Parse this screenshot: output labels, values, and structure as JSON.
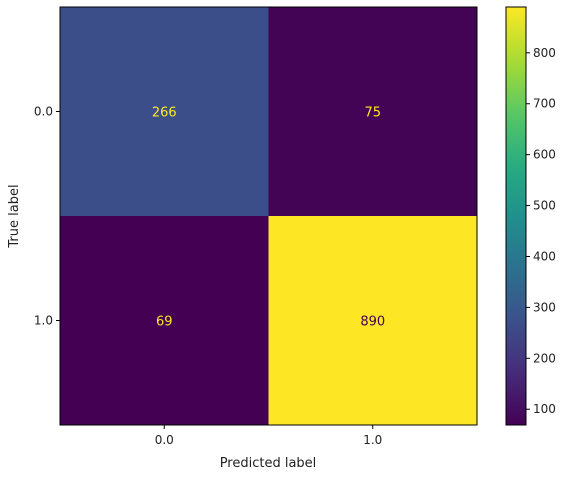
{
  "chart_data": {
    "type": "heatmap",
    "title": "",
    "xlabel": "Predicted label",
    "ylabel": "True label",
    "x_categories": [
      "0.0",
      "1.0"
    ],
    "y_categories": [
      "0.0",
      "1.0"
    ],
    "matrix": [
      [
        266,
        75
      ],
      [
        69,
        890
      ]
    ],
    "colormap": "viridis",
    "colorbar": {
      "ticks": [
        100,
        200,
        300,
        400,
        500,
        600,
        700,
        800
      ],
      "range": [
        69,
        890
      ]
    },
    "grid": false,
    "legend": "none"
  }
}
